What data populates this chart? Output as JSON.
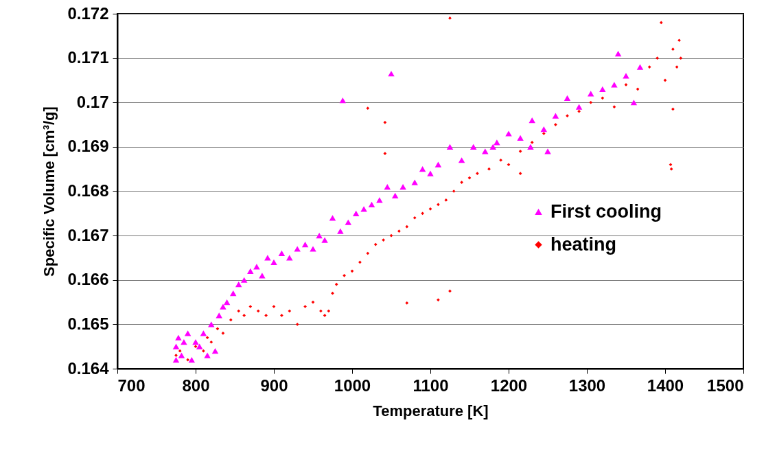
{
  "chart_data": {
    "type": "scatter",
    "xlabel": "Temperature [K]",
    "ylabel": "Specific Volume [cm³/g]",
    "xlim": [
      700,
      1500
    ],
    "xticks": [
      700,
      800,
      900,
      1000,
      1100,
      1200,
      1300,
      1400,
      1500
    ],
    "ylim": [
      0.164,
      0.172
    ],
    "yticks": [
      0.164,
      0.165,
      0.166,
      0.167,
      0.168,
      0.169,
      0.17,
      0.171,
      0.172
    ],
    "grid": "y",
    "legend": "right",
    "series": [
      {
        "name": "First cooling",
        "color": "#ff00ff",
        "marker": "triangle",
        "x": [
          775,
          775,
          778,
          782,
          785,
          790,
          795,
          800,
          805,
          810,
          815,
          820,
          825,
          830,
          835,
          840,
          848,
          855,
          862,
          870,
          878,
          885,
          892,
          900,
          910,
          920,
          930,
          940,
          950,
          958,
          965,
          975,
          985,
          995,
          1005,
          1015,
          1025,
          1035,
          1045,
          1055,
          1065,
          1080,
          1090,
          1100,
          1110,
          1125,
          1140,
          1155,
          1170,
          1185,
          1200,
          1215,
          1230,
          1245,
          1260,
          1275,
          1290,
          1305,
          1320,
          1335,
          1340,
          1350,
          1360,
          1368,
          988,
          1050,
          1228,
          1250,
          1180
        ],
        "values": [
          0.1642,
          0.1645,
          0.1647,
          0.1643,
          0.1646,
          0.1648,
          0.1642,
          0.1646,
          0.1645,
          0.1648,
          0.1643,
          0.165,
          0.1644,
          0.1652,
          0.1654,
          0.1655,
          0.1657,
          0.1659,
          0.166,
          0.1662,
          0.1663,
          0.1661,
          0.1665,
          0.1664,
          0.1666,
          0.1665,
          0.1667,
          0.1668,
          0.1667,
          0.167,
          0.1669,
          0.1674,
          0.1671,
          0.1673,
          0.1675,
          0.1676,
          0.1677,
          0.1678,
          0.1681,
          0.1679,
          0.1681,
          0.1682,
          0.1685,
          0.1684,
          0.1686,
          0.169,
          0.1687,
          0.169,
          0.1689,
          0.1691,
          0.1693,
          0.1692,
          0.1696,
          0.1694,
          0.1697,
          0.1701,
          0.1699,
          0.1702,
          0.1703,
          0.1704,
          0.1711,
          0.1706,
          0.17,
          0.1708,
          0.17005,
          0.17065,
          0.169,
          0.1689,
          0.169
        ]
      },
      {
        "name": "heating",
        "color": "#ff0000",
        "marker": "diamond",
        "x": [
          775,
          780,
          790,
          800,
          810,
          815,
          820,
          828,
          835,
          845,
          855,
          862,
          870,
          880,
          890,
          900,
          910,
          920,
          930,
          940,
          950,
          960,
          965,
          970,
          975,
          980,
          990,
          1000,
          1010,
          1020,
          1030,
          1040,
          1050,
          1060,
          1070,
          1080,
          1090,
          1100,
          1110,
          1120,
          1130,
          1140,
          1150,
          1160,
          1175,
          1190,
          1200,
          1215,
          1230,
          1245,
          1260,
          1275,
          1290,
          1305,
          1320,
          1335,
          1350,
          1365,
          1380,
          1390,
          1400,
          1410,
          1415,
          1418,
          1420,
          1125,
          1020,
          1042,
          1042,
          1070,
          1110,
          1125,
          1407,
          1408,
          1410,
          1395,
          1215
        ],
        "values": [
          0.1643,
          0.1644,
          0.1642,
          0.1645,
          0.1644,
          0.1647,
          0.1646,
          0.1649,
          0.1648,
          0.1651,
          0.1653,
          0.1652,
          0.1654,
          0.1653,
          0.1652,
          0.1654,
          0.1652,
          0.1653,
          0.165,
          0.1654,
          0.1655,
          0.1653,
          0.1652,
          0.1653,
          0.1657,
          0.1659,
          0.1661,
          0.1662,
          0.1664,
          0.1666,
          0.1668,
          0.1669,
          0.167,
          0.1671,
          0.1672,
          0.1674,
          0.1675,
          0.1676,
          0.1677,
          0.1678,
          0.168,
          0.1682,
          0.1683,
          0.1684,
          0.1685,
          0.1687,
          0.1686,
          0.1689,
          0.1691,
          0.1693,
          0.1695,
          0.1697,
          0.1698,
          0.17,
          0.1701,
          0.1699,
          0.1704,
          0.1703,
          0.1708,
          0.171,
          0.1705,
          0.1712,
          0.1708,
          0.1714,
          0.171,
          0.1719,
          0.16987,
          0.16955,
          0.16885,
          0.16548,
          0.16555,
          0.16575,
          0.1686,
          0.1685,
          0.16985,
          0.1718,
          0.1684
        ]
      }
    ]
  }
}
